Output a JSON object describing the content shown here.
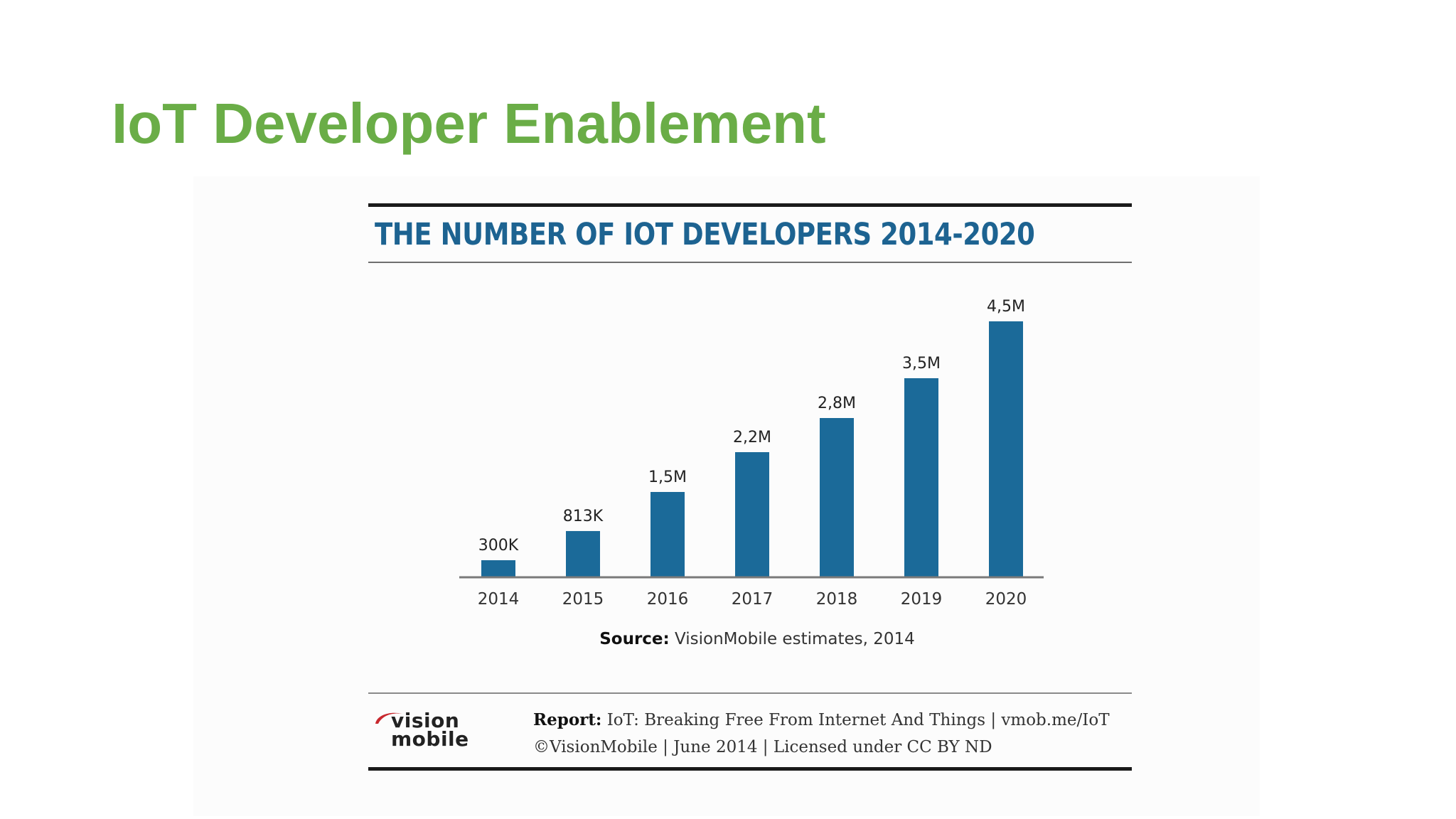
{
  "slide": {
    "title": "IoT Developer Enablement"
  },
  "figure": {
    "source_label": "Source:",
    "source_text": "VisionMobile estimates, 2014",
    "footer": {
      "report_label": "Report:",
      "report_text": "IoT: Breaking Free From Internet And Things | vmob.me/IoT",
      "copyright": "©VisionMobile | June 2014 | Licensed under CC BY ND"
    },
    "logo": {
      "line1": "vision",
      "line2": "mobile",
      "accent_color": "#c8282e"
    }
  },
  "chart_data": {
    "type": "bar",
    "title": "THE NUMBER OF IOT DEVELOPERS 2014-2020",
    "categories": [
      "2014",
      "2015",
      "2016",
      "2017",
      "2018",
      "2019",
      "2020"
    ],
    "values": [
      300000,
      813000,
      1500000,
      2200000,
      2800000,
      3500000,
      4500000
    ],
    "data_labels": [
      "300K",
      "813K",
      "1,5M",
      "2,2M",
      "2,8M",
      "3,5M",
      "4,5M"
    ],
    "xlabel": "",
    "ylabel": "",
    "ylim": [
      0,
      4500000
    ],
    "grid": false,
    "legend": "none",
    "bar_color": "#1b6a99"
  }
}
